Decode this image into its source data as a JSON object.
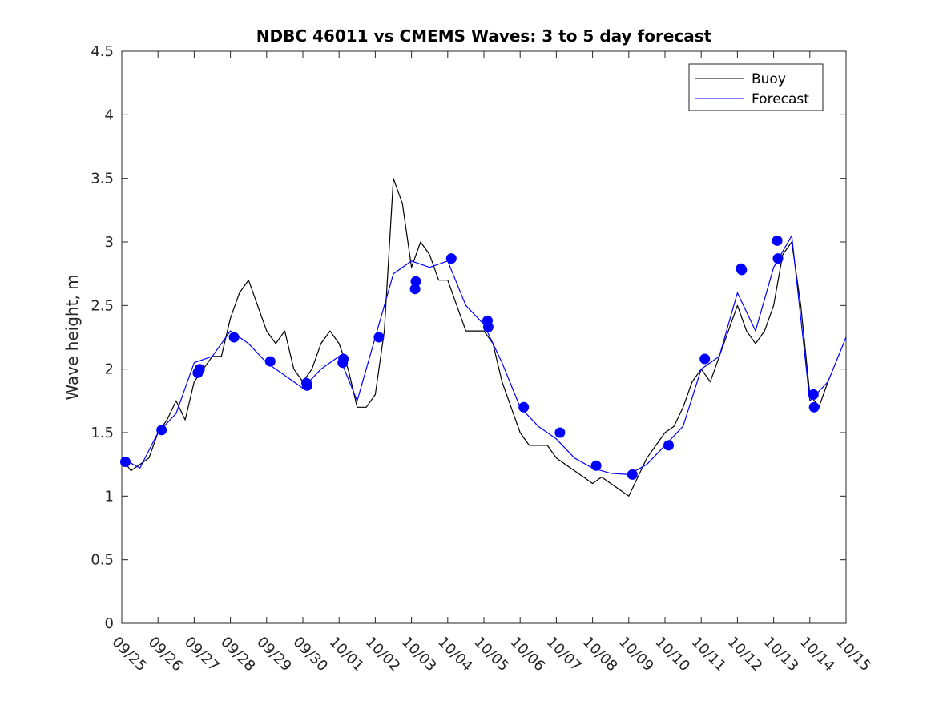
{
  "chart_data": {
    "type": "line",
    "title": "NDBC 46011 vs CMEMS Waves: 3 to 5 day forecast",
    "xlabel": "",
    "ylabel": "Wave height, m",
    "xlim": [
      0,
      20
    ],
    "ylim": [
      0,
      4.5
    ],
    "yticks": [
      0,
      0.5,
      1,
      1.5,
      2,
      2.5,
      3,
      3.5,
      4,
      4.5
    ],
    "ytick_labels": [
      "0",
      "0.5",
      "1",
      "1.5",
      "2",
      "2.5",
      "3",
      "3.5",
      "4",
      "4.5"
    ],
    "x_unit": "days since 09/25",
    "xtick_labels": [
      "09/25",
      "09/26",
      "09/27",
      "09/28",
      "09/29",
      "09/30",
      "10/01",
      "10/02",
      "10/03",
      "10/04",
      "10/05",
      "10/06",
      "10/07",
      "10/08",
      "10/09",
      "10/10",
      "10/11",
      "10/12",
      "10/13",
      "10/14",
      "10/15"
    ],
    "legend": {
      "location": "top-right",
      "entries": [
        "Buoy",
        "Forecast"
      ]
    },
    "colors": {
      "buoy": "#000000",
      "forecast": "#0000ff",
      "markers": "#0000ff"
    },
    "series": [
      {
        "name": "Buoy",
        "color": "#000000",
        "x": [
          0,
          0.25,
          0.5,
          0.75,
          1,
          1.25,
          1.5,
          1.75,
          2,
          2.25,
          2.5,
          2.75,
          3,
          3.25,
          3.5,
          3.75,
          4,
          4.25,
          4.5,
          4.75,
          5,
          5.25,
          5.5,
          5.75,
          6,
          6.25,
          6.5,
          6.75,
          7,
          7.25,
          7.5,
          7.75,
          8,
          8.25,
          8.5,
          8.75,
          9,
          9.25,
          9.5,
          9.75,
          10,
          10.25,
          10.5,
          10.75,
          11,
          11.25,
          11.5,
          11.75,
          12,
          12.25,
          12.5,
          12.75,
          13,
          13.25,
          13.5,
          13.75,
          14,
          14.25,
          14.5,
          14.75,
          15,
          15.25,
          15.5,
          15.75,
          16,
          16.25,
          16.5,
          16.75,
          17,
          17.25,
          17.5,
          17.75,
          18,
          18.25,
          18.5,
          18.75,
          19,
          19.25,
          19.5
        ],
        "y": [
          1.3,
          1.2,
          1.25,
          1.3,
          1.5,
          1.6,
          1.75,
          1.6,
          1.9,
          2.0,
          2.1,
          2.1,
          2.4,
          2.6,
          2.7,
          2.5,
          2.3,
          2.2,
          2.3,
          2.0,
          1.9,
          2.0,
          2.2,
          2.3,
          2.2,
          2.0,
          1.7,
          1.7,
          1.8,
          2.3,
          3.5,
          3.3,
          2.8,
          3.0,
          2.9,
          2.7,
          2.7,
          2.5,
          2.3,
          2.3,
          2.3,
          2.2,
          1.9,
          1.7,
          1.5,
          1.4,
          1.4,
          1.4,
          1.3,
          1.25,
          1.2,
          1.15,
          1.1,
          1.15,
          1.1,
          1.05,
          1.0,
          1.15,
          1.3,
          1.4,
          1.5,
          1.55,
          1.7,
          1.9,
          2.0,
          1.9,
          2.1,
          2.3,
          2.5,
          2.3,
          2.2,
          2.3,
          2.5,
          2.9,
          3.0,
          2.5,
          1.8,
          1.7,
          1.9
        ]
      },
      {
        "name": "Forecast",
        "color": "#0000ff",
        "x": [
          0,
          0.5,
          1,
          1.5,
          2,
          2.5,
          3,
          3.5,
          4,
          4.5,
          5,
          5.5,
          6,
          6.5,
          7,
          7.5,
          8,
          8.5,
          9,
          9.5,
          10,
          10.5,
          11,
          11.5,
          12,
          12.5,
          13,
          13.5,
          14,
          14.5,
          15,
          15.5,
          16,
          16.5,
          17,
          17.5,
          18,
          18.5,
          19,
          19.5,
          20
        ],
        "y": [
          1.3,
          1.22,
          1.5,
          1.65,
          2.05,
          2.1,
          2.3,
          2.2,
          2.05,
          1.95,
          1.85,
          2.0,
          2.1,
          1.75,
          2.25,
          2.75,
          2.85,
          2.8,
          2.85,
          2.5,
          2.35,
          2.05,
          1.7,
          1.55,
          1.45,
          1.3,
          1.22,
          1.18,
          1.17,
          1.25,
          1.4,
          1.55,
          2.0,
          2.1,
          2.6,
          2.3,
          2.8,
          3.05,
          1.75,
          1.9,
          2.25
        ]
      }
    ],
    "forecast_markers": {
      "x": [
        0.1,
        1.1,
        2.1,
        2.15,
        3.1,
        4.1,
        5.1,
        5.12,
        6.1,
        6.12,
        7.1,
        8.1,
        8.12,
        9.1,
        10.1,
        10.12,
        11.1,
        12.1,
        13.1,
        14.1,
        15.1,
        16.1,
        17.1,
        17.12,
        18.1,
        18.12,
        19.1,
        19.12
      ],
      "y": [
        1.27,
        1.52,
        1.97,
        2.0,
        2.25,
        2.06,
        1.89,
        1.87,
        2.05,
        2.08,
        2.25,
        2.63,
        2.69,
        2.87,
        2.38,
        2.33,
        1.7,
        1.5,
        1.24,
        1.17,
        1.4,
        2.08,
        2.79,
        2.78,
        3.01,
        2.87,
        1.8,
        1.7
      ]
    }
  }
}
